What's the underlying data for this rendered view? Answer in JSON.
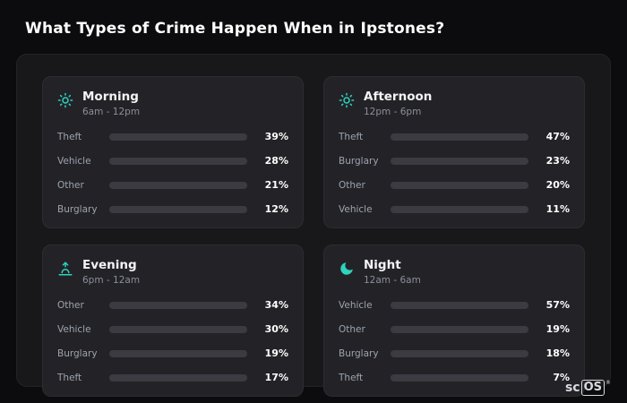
{
  "page_title": "What Types of Crime Happen When in Ipstones?",
  "colors": {
    "Theft": "#a855f7",
    "Vehicle": "#3b82f6",
    "Other": "#64748b",
    "Burglary": "#e5862b",
    "accent": "#2dd4bf",
    "track": "#3b3b41"
  },
  "chart_data": {
    "type": "bar",
    "title": "What Types of Crime Happen When in Ipstones?",
    "unit": "%",
    "xlim": [
      0,
      100
    ],
    "groups": [
      {
        "title": "Morning",
        "subtitle": "6am - 12pm",
        "icon": "sun-icon",
        "rows": [
          {
            "label": "Theft",
            "value": 39,
            "pct": "39%",
            "color": "Theft"
          },
          {
            "label": "Vehicle",
            "value": 28,
            "pct": "28%",
            "color": "Vehicle"
          },
          {
            "label": "Other",
            "value": 21,
            "pct": "21%",
            "color": "Other"
          },
          {
            "label": "Burglary",
            "value": 12,
            "pct": "12%",
            "color": "Burglary"
          }
        ]
      },
      {
        "title": "Afternoon",
        "subtitle": "12pm - 6pm",
        "icon": "sun-icon",
        "rows": [
          {
            "label": "Theft",
            "value": 47,
            "pct": "47%",
            "color": "Theft"
          },
          {
            "label": "Burglary",
            "value": 23,
            "pct": "23%",
            "color": "Burglary"
          },
          {
            "label": "Other",
            "value": 20,
            "pct": "20%",
            "color": "Other"
          },
          {
            "label": "Vehicle",
            "value": 11,
            "pct": "11%",
            "color": "Vehicle"
          }
        ]
      },
      {
        "title": "Evening",
        "subtitle": "6pm - 12am",
        "icon": "sunrise-icon",
        "rows": [
          {
            "label": "Other",
            "value": 34,
            "pct": "34%",
            "color": "Other"
          },
          {
            "label": "Vehicle",
            "value": 30,
            "pct": "30%",
            "color": "Vehicle"
          },
          {
            "label": "Burglary",
            "value": 19,
            "pct": "19%",
            "color": "Burglary"
          },
          {
            "label": "Theft",
            "value": 17,
            "pct": "17%",
            "color": "Theft"
          }
        ]
      },
      {
        "title": "Night",
        "subtitle": "12am - 6am",
        "icon": "moon-icon",
        "rows": [
          {
            "label": "Vehicle",
            "value": 57,
            "pct": "57%",
            "color": "Vehicle"
          },
          {
            "label": "Other",
            "value": 19,
            "pct": "19%",
            "color": "Other"
          },
          {
            "label": "Burglary",
            "value": 18,
            "pct": "18%",
            "color": "Burglary"
          },
          {
            "label": "Theft",
            "value": 7,
            "pct": "7%",
            "color": "Theft"
          }
        ]
      }
    ]
  },
  "brand": {
    "prefix": "sc",
    "boxed": "OS",
    "reg": "®"
  }
}
